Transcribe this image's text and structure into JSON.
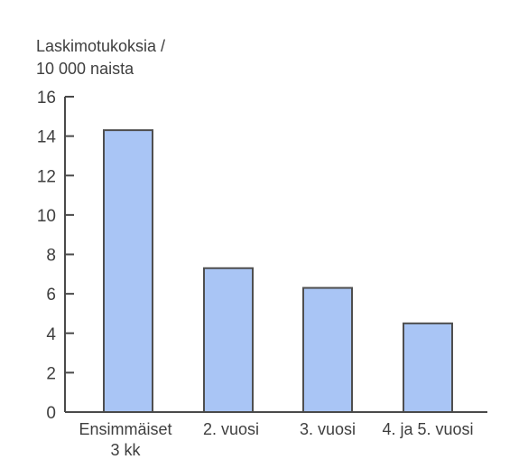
{
  "chart_data": {
    "type": "bar",
    "ylabel": [
      "Laskimotukoksia /",
      "10 000 naista"
    ],
    "categories": [
      [
        "Ensimmäiset",
        "3 kk"
      ],
      [
        "2. vuosi"
      ],
      [
        "3. vuosi"
      ],
      [
        "4. ja 5. vuosi"
      ]
    ],
    "values": [
      14.3,
      7.3,
      6.3,
      4.5
    ],
    "ylim": [
      0,
      16
    ],
    "yticks": [
      0,
      2,
      4,
      6,
      8,
      10,
      12,
      14,
      16
    ],
    "grid": false,
    "legend": "none",
    "colors": {
      "bar_fill": "#a9c5f5",
      "bar_stroke": "#4f4f4f",
      "axis": "#4a4a4a",
      "text": "#3f3f3f"
    }
  }
}
